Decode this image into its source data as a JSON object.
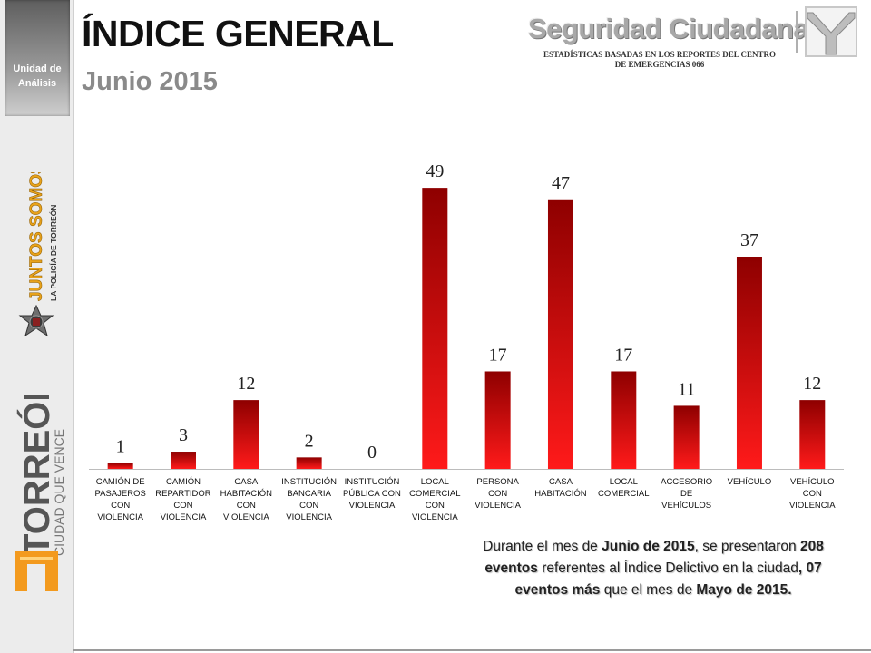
{
  "header": {
    "title": "ÍNDICE GENERAL",
    "subtitle": "Junio 2015",
    "brand": "Seguridad Ciudadana",
    "caption": "ESTADÍSTICAS BASADAS EN LOS REPORTES DEL CENTRO DE EMERGENCIAS 066"
  },
  "sidebar": {
    "unit_label_line1": "Unidad de",
    "unit_label_line2": "Análisis",
    "juntos_line1": "JUNTOS SOMOS",
    "juntos_line2": "LA POLICÍA DE TORREÓN",
    "torreon_line1": "TORREÓN",
    "torreon_line2": "CIUDAD QUE VENCE"
  },
  "colors": {
    "bar_top": "#8e0000",
    "bar_bottom": "#ff1a1a",
    "title": "#111111",
    "subtitle": "#8a8a8a"
  },
  "chart_data": {
    "type": "bar",
    "title": "",
    "xlabel": "",
    "ylabel": "",
    "ylim": [
      0,
      55
    ],
    "grid": false,
    "legend": "none",
    "categories": [
      [
        "CAMIÓN DE",
        "PASAJEROS",
        "CON",
        "VIOLENCIA"
      ],
      [
        "CAMIÓN",
        "REPARTIDOR",
        "CON",
        "VIOLENCIA"
      ],
      [
        "CASA",
        "HABITACIÓN",
        "CON",
        "VIOLENCIA"
      ],
      [
        "INSTITUCIÓN",
        "BANCARIA",
        "CON",
        "VIOLENCIA"
      ],
      [
        "INSTITUCIÓN",
        "PÚBLICA CON",
        "VIOLENCIA"
      ],
      [
        "LOCAL",
        "COMERCIAL",
        "CON",
        "VIOLENCIA"
      ],
      [
        "PERSONA",
        "CON",
        "VIOLENCIA"
      ],
      [
        "CASA",
        "HABITACIÓN"
      ],
      [
        "LOCAL",
        "COMERCIAL"
      ],
      [
        "ACCESORIO",
        "DE",
        "VEHÍCULOS"
      ],
      [
        "VEHÍCULO"
      ],
      [
        "VEHÍCULO",
        "CON",
        "VIOLENCIA"
      ]
    ],
    "values": [
      1,
      3,
      12,
      2,
      0,
      49,
      17,
      47,
      17,
      11,
      37,
      12
    ]
  },
  "summary": {
    "t1": "Durante el mes de ",
    "b1": "Junio de 2015",
    "t2": ", se presentaron  ",
    "b2": "208 eventos",
    "t3": " referentes  al Índice Delictivo en la ciudad",
    "b3": ", 07 eventos más",
    "t4": " que el mes de ",
    "b4": "Mayo de 2015."
  }
}
